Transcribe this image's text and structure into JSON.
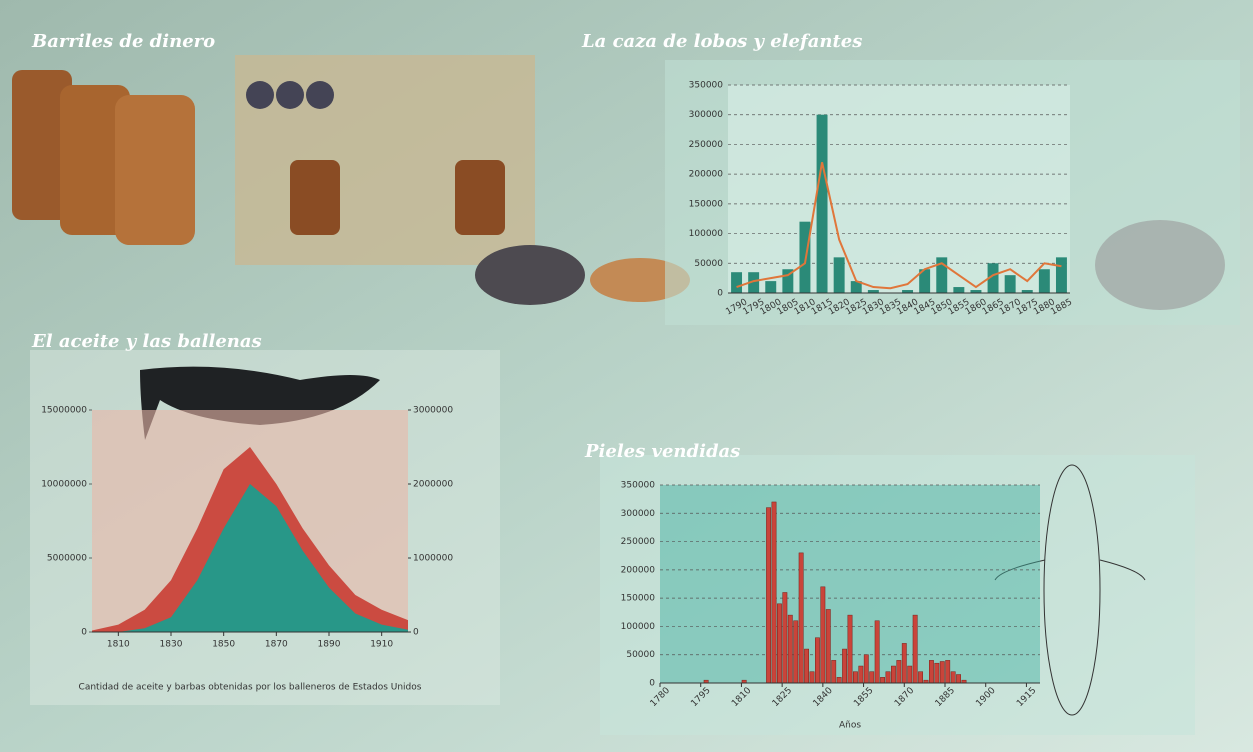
{
  "headings": [
    "Barriles de dinero",
    "La caza de lobos y elefantes",
    "El aceite y las ballenas",
    "Pieles vendidas"
  ],
  "chart_data": [
    {
      "type": "combo",
      "categories": [
        "1790",
        "1795",
        "1800",
        "1805",
        "1810",
        "1815",
        "1820",
        "1825",
        "1830",
        "1835",
        "1840",
        "1845",
        "1850",
        "1855",
        "1860",
        "1865",
        "1870",
        "1875",
        "1880",
        "1885"
      ],
      "series": [
        {
          "color": "#2b8a78",
          "values": [
            35000,
            35000,
            20000,
            40000,
            120000,
            300000,
            60000,
            20000,
            5000,
            0,
            5000,
            40000,
            60000,
            10000,
            5000,
            50000,
            30000,
            5000,
            40000,
            60000
          ]
        },
        {
          "color": "#e0763a",
          "values": [
            10000,
            20000,
            25000,
            30000,
            50000,
            220000,
            90000,
            20000,
            10000,
            8000,
            15000,
            40000,
            50000,
            30000,
            10000,
            30000,
            40000,
            20000,
            50000,
            45000
          ]
        }
      ],
      "ylim": [
        0,
        350000
      ],
      "yticks": [
        0,
        50000,
        100000,
        150000,
        200000,
        250000,
        300000,
        350000
      ],
      "grid": true
    },
    {
      "type": "area",
      "caption": "Cantidad de aceite y barbas obtenidas por los balleneros de Estados Unidos",
      "x": [
        1800,
        1810,
        1820,
        1830,
        1840,
        1850,
        1860,
        1870,
        1880,
        1890,
        1900,
        1910,
        1920
      ],
      "series": [
        {
          "color": "#c9443a",
          "values": [
            100000,
            500000,
            1500000,
            3500000,
            7000000,
            11000000,
            12500000,
            10000000,
            7000000,
            4500000,
            2500000,
            1500000,
            800000
          ]
        },
        {
          "color": "#1f9b8c",
          "axis": "y2",
          "values": [
            0,
            0,
            50000,
            200000,
            700000,
            1400000,
            2000000,
            1700000,
            1100000,
            600000,
            250000,
            100000,
            30000
          ]
        }
      ],
      "xlim": [
        1800,
        1920
      ],
      "xticks": [
        1810,
        1830,
        1850,
        1870,
        1890,
        1910
      ],
      "ylim": [
        0,
        15000000
      ],
      "yticks": [
        0,
        5000000,
        10000000,
        15000000
      ],
      "y2lim": [
        0,
        3000000
      ],
      "y2ticks": [
        0,
        1000000,
        2000000,
        3000000
      ]
    },
    {
      "type": "bar",
      "xlabel": "Años",
      "color": "#c9443a",
      "x": [
        1797,
        1811,
        1820,
        1822,
        1824,
        1826,
        1828,
        1830,
        1832,
        1834,
        1836,
        1838,
        1840,
        1842,
        1844,
        1846,
        1848,
        1850,
        1852,
        1854,
        1856,
        1858,
        1860,
        1862,
        1864,
        1866,
        1868,
        1870,
        1872,
        1874,
        1876,
        1878,
        1880,
        1882,
        1884,
        1886,
        1888,
        1890,
        1892
      ],
      "values": [
        5000,
        5000,
        310000,
        320000,
        140000,
        160000,
        120000,
        110000,
        230000,
        60000,
        20000,
        80000,
        170000,
        130000,
        40000,
        10000,
        60000,
        120000,
        20000,
        30000,
        50000,
        20000,
        110000,
        10000,
        20000,
        30000,
        40000,
        70000,
        30000,
        120000,
        20000,
        5000,
        40000,
        35000,
        38000,
        40000,
        20000,
        15000,
        5000
      ],
      "xlim": [
        1780,
        1920
      ],
      "xticks": [
        1780,
        1795,
        1810,
        1825,
        1840,
        1855,
        1870,
        1885,
        1900,
        1915
      ],
      "ylim": [
        0,
        350000
      ],
      "yticks": [
        0,
        50000,
        100000,
        150000,
        200000,
        250000,
        300000,
        350000
      ],
      "grid": true
    }
  ]
}
